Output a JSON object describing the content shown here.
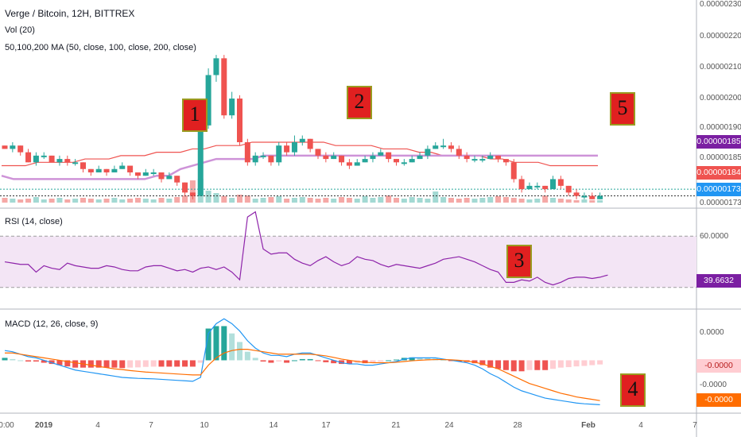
{
  "header": {
    "symbol_line": "Verge / Bitcoin, 12H, BITTREX",
    "vol_label": "Vol (20)",
    "ma_label": "50,100,200 MA (50, close, 100, close, 200, close)"
  },
  "rsi_panel": {
    "label": "RSI (14, close)"
  },
  "macd_panel": {
    "label": "MACD (12, 26, close, 9)"
  },
  "annotations": [
    "1",
    "2",
    "3",
    "4",
    "5"
  ],
  "price_tags": {
    "ma_tag": "0.00000185",
    "last_tag": "0.00000184",
    "low_tag": "0.00000173",
    "rsi_tag": "39.6632",
    "macd_tag1": "-0.0000",
    "macd_tag2": "-0.0000"
  },
  "colors": {
    "up": "#26a69a",
    "down": "#ef5350",
    "vol_up": "#a3d9d3",
    "vol_down": "#f5a8a6",
    "ma_red": "#ef5350",
    "ma_purple": "#ce93d8",
    "rsi": "#8e24aa",
    "rsi_bg": "#f3e5f5",
    "macd": "#2196f3",
    "signal": "#ff6d00",
    "hist_pos": "#26a69a",
    "hist_neg": "#ef5350",
    "ma_tag_bg": "#7b1fa2",
    "last_tag_bg": "#ef5350",
    "low_tag_bg": "#2196f3",
    "rsi_tag_bg": "#7b1fa2",
    "macd_tag1_bg": "#ffcdd2",
    "macd_tag2_bg": "#ff6d00",
    "annotation_bg": "#e02020"
  },
  "chart_data": [
    {
      "type": "candlestick",
      "title": "Verge / Bitcoin, 12H, BITTREX",
      "x_ticks": [
        "0:00",
        "2019",
        "4",
        "7",
        "10",
        "14",
        "17",
        "21",
        "24",
        "28",
        "Feb",
        "4",
        "7"
      ],
      "y_ticks": [
        "0.00000230",
        "0.00000220",
        "0.00000210",
        "0.00000200",
        "0.00000190",
        "0.00000185",
        "0.00000173"
      ],
      "ylim": [
        1.72e-06,
        2.3e-06
      ],
      "candles": [
        [
          189,
          188,
          189,
          188
        ],
        [
          188,
          189,
          190,
          187
        ],
        [
          189,
          187,
          189,
          186
        ],
        [
          187,
          184,
          188,
          184
        ],
        [
          184,
          186,
          187,
          183
        ],
        [
          186,
          186,
          187,
          185
        ],
        [
          186,
          184,
          186,
          184
        ],
        [
          184,
          185,
          186,
          183
        ],
        [
          185,
          184,
          186,
          183
        ],
        [
          184,
          184,
          185,
          183
        ],
        [
          184,
          182,
          184,
          181
        ],
        [
          182,
          181,
          182,
          180
        ],
        [
          181,
          182,
          183,
          181
        ],
        [
          182,
          181,
          182,
          180
        ],
        [
          181,
          182,
          183,
          181
        ],
        [
          182,
          183,
          184,
          182
        ],
        [
          183,
          181,
          183,
          180
        ],
        [
          181,
          180,
          181,
          179
        ],
        [
          180,
          181,
          182,
          180
        ],
        [
          181,
          181,
          182,
          180
        ],
        [
          181,
          179,
          181,
          178
        ],
        [
          179,
          180,
          181,
          179
        ],
        [
          180,
          178,
          180,
          177
        ],
        [
          178,
          175,
          178,
          174
        ],
        [
          175,
          174,
          175,
          173
        ],
        [
          174,
          195,
          197,
          174
        ],
        [
          195,
          210,
          212,
          194
        ],
        [
          210,
          215,
          216,
          208
        ],
        [
          215,
          198,
          216,
          197
        ],
        [
          198,
          203,
          205,
          197
        ],
        [
          203,
          190,
          204,
          189
        ],
        [
          190,
          184,
          191,
          183
        ],
        [
          184,
          186,
          187,
          183
        ],
        [
          186,
          186,
          187,
          185
        ],
        [
          186,
          184,
          186,
          183
        ],
        [
          184,
          189,
          190,
          183
        ],
        [
          189,
          187,
          190,
          186
        ],
        [
          187,
          190,
          192,
          186
        ],
        [
          190,
          191,
          192,
          189
        ],
        [
          191,
          188,
          191,
          187
        ],
        [
          188,
          186,
          188,
          185
        ],
        [
          186,
          185,
          187,
          184
        ],
        [
          185,
          186,
          187,
          185
        ],
        [
          186,
          184,
          186,
          183
        ],
        [
          184,
          183,
          185,
          182
        ],
        [
          183,
          184,
          185,
          183
        ],
        [
          184,
          185,
          186,
          184
        ],
        [
          185,
          186,
          187,
          184
        ],
        [
          186,
          187,
          188,
          186
        ],
        [
          187,
          185,
          187,
          184
        ],
        [
          185,
          184,
          185,
          183
        ],
        [
          184,
          184,
          185,
          183
        ],
        [
          184,
          185,
          186,
          184
        ],
        [
          185,
          186,
          187,
          185
        ],
        [
          186,
          188,
          189,
          185
        ],
        [
          188,
          189,
          190,
          188
        ],
        [
          189,
          189,
          191,
          188
        ],
        [
          189,
          188,
          190,
          187
        ],
        [
          188,
          186,
          189,
          185
        ],
        [
          186,
          185,
          187,
          184
        ],
        [
          185,
          185,
          186,
          184
        ],
        [
          185,
          185,
          186,
          184
        ],
        [
          185,
          186,
          187,
          185
        ],
        [
          186,
          185,
          186,
          184
        ],
        [
          185,
          184,
          185,
          183
        ],
        [
          184,
          179,
          185,
          178
        ],
        [
          179,
          176,
          180,
          175
        ],
        [
          176,
          177,
          178,
          176
        ],
        [
          177,
          177,
          178,
          176
        ],
        [
          177,
          176,
          177,
          175
        ],
        [
          176,
          179,
          180,
          176
        ],
        [
          179,
          177,
          180,
          176
        ],
        [
          177,
          175,
          177,
          174
        ],
        [
          175,
          174,
          176,
          173
        ],
        [
          174,
          174,
          175,
          173
        ],
        [
          174,
          173,
          175,
          173
        ],
        [
          173,
          174,
          175,
          173
        ]
      ],
      "ma_red_levels": [
        183,
        183,
        183,
        184,
        184,
        184,
        184,
        185,
        185,
        185,
        186,
        186,
        186,
        187,
        187,
        187,
        188,
        188,
        189,
        189,
        189,
        190,
        190,
        190,
        190,
        190,
        190,
        190,
        189,
        189,
        189,
        189,
        188,
        188,
        188,
        187,
        187,
        186,
        186,
        186,
        186,
        185,
        185,
        184,
        184,
        184,
        183,
        183,
        183,
        183,
        183
      ],
      "ma_purple_levels": [
        180,
        179,
        179,
        179,
        179,
        179,
        179,
        179,
        179,
        179,
        179,
        179,
        179,
        180,
        180,
        182,
        183,
        184,
        185,
        185,
        185,
        185,
        186,
        186,
        186,
        186,
        186,
        186,
        186,
        186,
        186,
        186,
        186,
        186,
        186,
        186,
        186,
        186,
        186,
        186,
        186,
        186,
        186,
        186,
        186,
        186,
        186,
        186,
        186,
        186,
        186
      ]
    },
    {
      "type": "line",
      "title": "RSI (14, close)",
      "y_ticks": [
        "60.0000"
      ],
      "ylim": [
        15,
        90
      ],
      "bands": [
        70,
        30
      ],
      "values": [
        50,
        49,
        48,
        48,
        42,
        47,
        45,
        44,
        49,
        47,
        46,
        45,
        45,
        47,
        46,
        44,
        43,
        43,
        46,
        47,
        47,
        45,
        43,
        44,
        42,
        45,
        46,
        44,
        46,
        42,
        36,
        85,
        89,
        60,
        56,
        57,
        57,
        52,
        49,
        47,
        51,
        54,
        50,
        47,
        49,
        54,
        52,
        51,
        48,
        46,
        48,
        47,
        46,
        45,
        47,
        49,
        52,
        53,
        54,
        52,
        50,
        47,
        44,
        42,
        34,
        34,
        36,
        35,
        38,
        34,
        32,
        34,
        37,
        38,
        38,
        37,
        38,
        39.7
      ],
      "last_value": "39.6632"
    },
    {
      "type": "line",
      "title": "MACD (12, 26, close, 9)",
      "y_ticks": [
        "0.0000",
        "-0.0000"
      ],
      "series": [
        {
          "values": [
            0.4,
            0.35,
            0.25,
            0.15,
            0.1,
            0.0,
            -0.1,
            -0.2,
            -0.3,
            -0.4,
            -0.45,
            -0.5,
            -0.55,
            -0.6,
            -0.65,
            -0.7,
            -0.72,
            -0.74,
            -0.75,
            -0.76,
            -0.78,
            -0.8,
            -0.82,
            -0.84,
            -0.86,
            -0.7,
            1.1,
            1.5,
            1.7,
            1.5,
            1.2,
            0.8,
            0.5,
            0.3,
            0.2,
            0.2,
            0.15,
            0.25,
            0.3,
            0.3,
            0.2,
            0.1,
            0.0,
            -0.1,
            -0.15,
            -0.15,
            -0.2,
            -0.2,
            -0.15,
            -0.1,
            -0.05,
            0.05,
            0.1,
            0.1,
            0.1,
            0.1,
            0.05,
            0.0,
            -0.05,
            -0.1,
            -0.2,
            -0.35,
            -0.55,
            -0.7,
            -0.9,
            -1.1,
            -1.25,
            -1.35,
            -1.45,
            -1.55,
            -1.6,
            -1.65,
            -1.7,
            -1.75,
            -1.78,
            -1.8,
            -1.82
          ]
        },
        {
          "values": [
            0.3,
            0.3,
            0.25,
            0.2,
            0.15,
            0.1,
            0.05,
            0.0,
            -0.05,
            -0.1,
            -0.15,
            -0.2,
            -0.25,
            -0.3,
            -0.35,
            -0.38,
            -0.42,
            -0.45,
            -0.48,
            -0.5,
            -0.52,
            -0.54,
            -0.56,
            -0.58,
            -0.6,
            -0.6,
            -0.2,
            0.1,
            0.3,
            0.4,
            0.45,
            0.45,
            0.4,
            0.35,
            0.3,
            0.25,
            0.25,
            0.25,
            0.25,
            0.25,
            0.22,
            0.18,
            0.12,
            0.05,
            0.0,
            -0.05,
            -0.08,
            -0.1,
            -0.1,
            -0.1,
            -0.08,
            -0.05,
            -0.02,
            0.0,
            0.02,
            0.03,
            0.03,
            0.02,
            0.0,
            -0.03,
            -0.08,
            -0.15,
            -0.25,
            -0.35,
            -0.5,
            -0.65,
            -0.8,
            -0.95,
            -1.05,
            -1.15,
            -1.25,
            -1.35,
            -1.42,
            -1.5,
            -1.55,
            -1.6,
            -1.65
          ]
        }
      ],
      "histogram": [
        0.1,
        0.05,
        0.0,
        -0.05,
        -0.05,
        -0.1,
        -0.15,
        -0.2,
        -0.25,
        -0.3,
        -0.3,
        -0.3,
        -0.3,
        -0.3,
        -0.3,
        -0.32,
        -0.3,
        -0.29,
        -0.27,
        -0.26,
        -0.26,
        -0.26,
        -0.26,
        -0.26,
        -0.26,
        -0.1,
        1.3,
        1.4,
        1.4,
        1.1,
        0.75,
        0.35,
        0.1,
        -0.05,
        -0.1,
        -0.05,
        -0.1,
        0.0,
        0.05,
        0.05,
        -0.02,
        -0.08,
        -0.12,
        -0.15,
        -0.15,
        -0.1,
        -0.12,
        -0.1,
        -0.05,
        0.0,
        0.03,
        0.1,
        0.12,
        0.1,
        0.08,
        0.07,
        0.02,
        -0.02,
        -0.05,
        -0.07,
        -0.12,
        -0.2,
        -0.3,
        -0.35,
        -0.4,
        -0.45,
        -0.45,
        -0.4,
        -0.4,
        -0.4,
        -0.35,
        -0.3,
        -0.28,
        -0.25,
        -0.23,
        -0.2,
        -0.17
      ]
    }
  ]
}
